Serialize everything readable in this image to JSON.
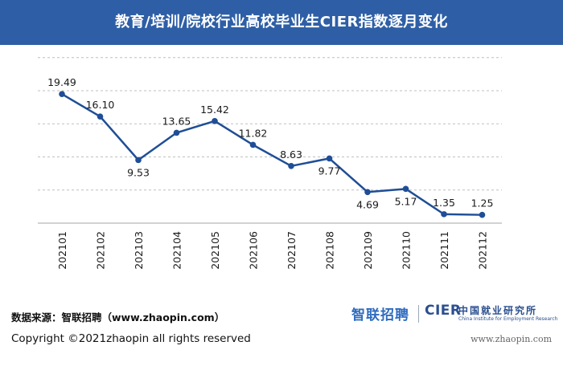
{
  "header": {
    "title": "教育/培训/院校行业高校毕业生CIER指数逐月变化"
  },
  "footer": {
    "source": "数据来源：智联招聘（www.zhaopin.com）",
    "copyright": "Copyright ©2021zhaopin all rights reserved",
    "brand_logo": "智联招聘",
    "cier_logo": "CIER",
    "cier_name_cn": "中国就业研究所",
    "cier_name_en": "China Institute for Employment Research",
    "website": "www.zhaopin.com"
  },
  "colors": {
    "header_bg": "#2e5fa6",
    "line": "#1f4e96",
    "grid": "#bfbfbf"
  },
  "chart_data": {
    "type": "line",
    "title": "教育/培训/院校行业高校毕业生CIER指数逐月变化",
    "xlabel": "",
    "ylabel": "",
    "categories": [
      "202101",
      "202102",
      "202103",
      "202104",
      "202105",
      "202106",
      "202107",
      "202108",
      "202109",
      "202110",
      "202111",
      "202112"
    ],
    "series": [
      {
        "values": [
          19.49,
          16.1,
          9.53,
          13.65,
          15.42,
          11.82,
          8.63,
          9.77,
          4.69,
          5.17,
          1.35,
          1.25
        ],
        "labels": [
          "19.49",
          "16.10",
          "9.53",
          "13.65",
          "15.42",
          "11.82",
          "8.63",
          "9.77",
          "4.69",
          "5.17",
          "1.35",
          "1.25"
        ]
      }
    ],
    "ylim": [
      0,
      25
    ],
    "grid": true,
    "y_axis_visible": false,
    "legend": "none"
  }
}
